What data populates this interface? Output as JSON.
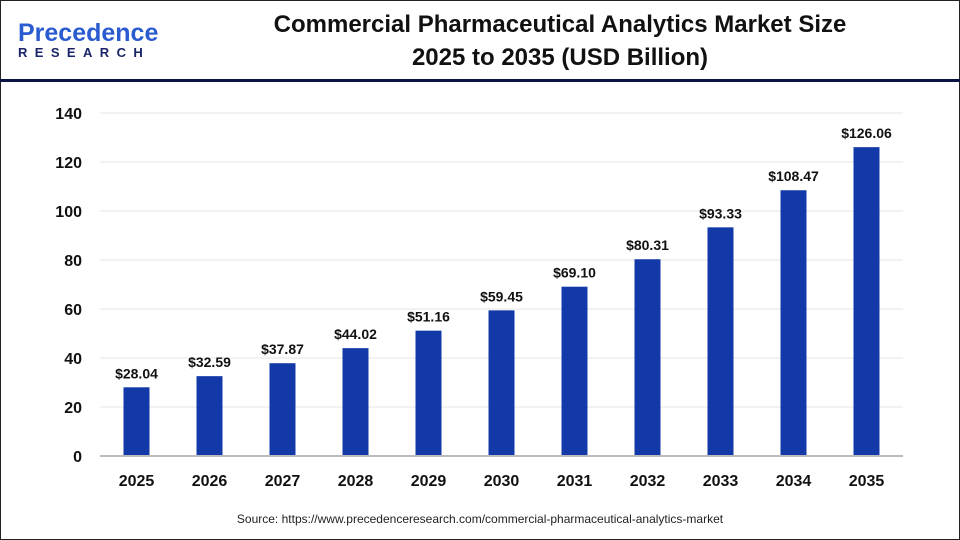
{
  "logo": {
    "line1": "Precedence",
    "line2": "RESEARCH"
  },
  "title_line1": "Commercial Pharmaceutical Analytics Market Size",
  "title_line2": "2025 to 2035 (USD Billion)",
  "source": "Source: https://www.precedenceresearch.com/commercial-pharmaceutical-analytics-market",
  "chart_data": {
    "type": "bar",
    "title": "Commercial Pharmaceutical Analytics Market Size 2025 to 2035 (USD Billion)",
    "categories": [
      "2025",
      "2026",
      "2027",
      "2028",
      "2029",
      "2030",
      "2031",
      "2032",
      "2033",
      "2034",
      "2035"
    ],
    "values": [
      28.04,
      32.59,
      37.87,
      44.02,
      51.16,
      59.45,
      69.1,
      80.31,
      93.33,
      108.47,
      126.06
    ],
    "data_labels": [
      "$28.04",
      "$32.59",
      "$37.87",
      "$44.02",
      "$51.16",
      "$59.45",
      "$69.10",
      "$80.31",
      "$93.33",
      "$108.47",
      "$126.06"
    ],
    "ylim": [
      0,
      140
    ],
    "yticks": [
      "0",
      "20",
      "40",
      "60",
      "80",
      "100",
      "120",
      "140"
    ],
    "grid": true,
    "bar_color": "#1338a8"
  }
}
